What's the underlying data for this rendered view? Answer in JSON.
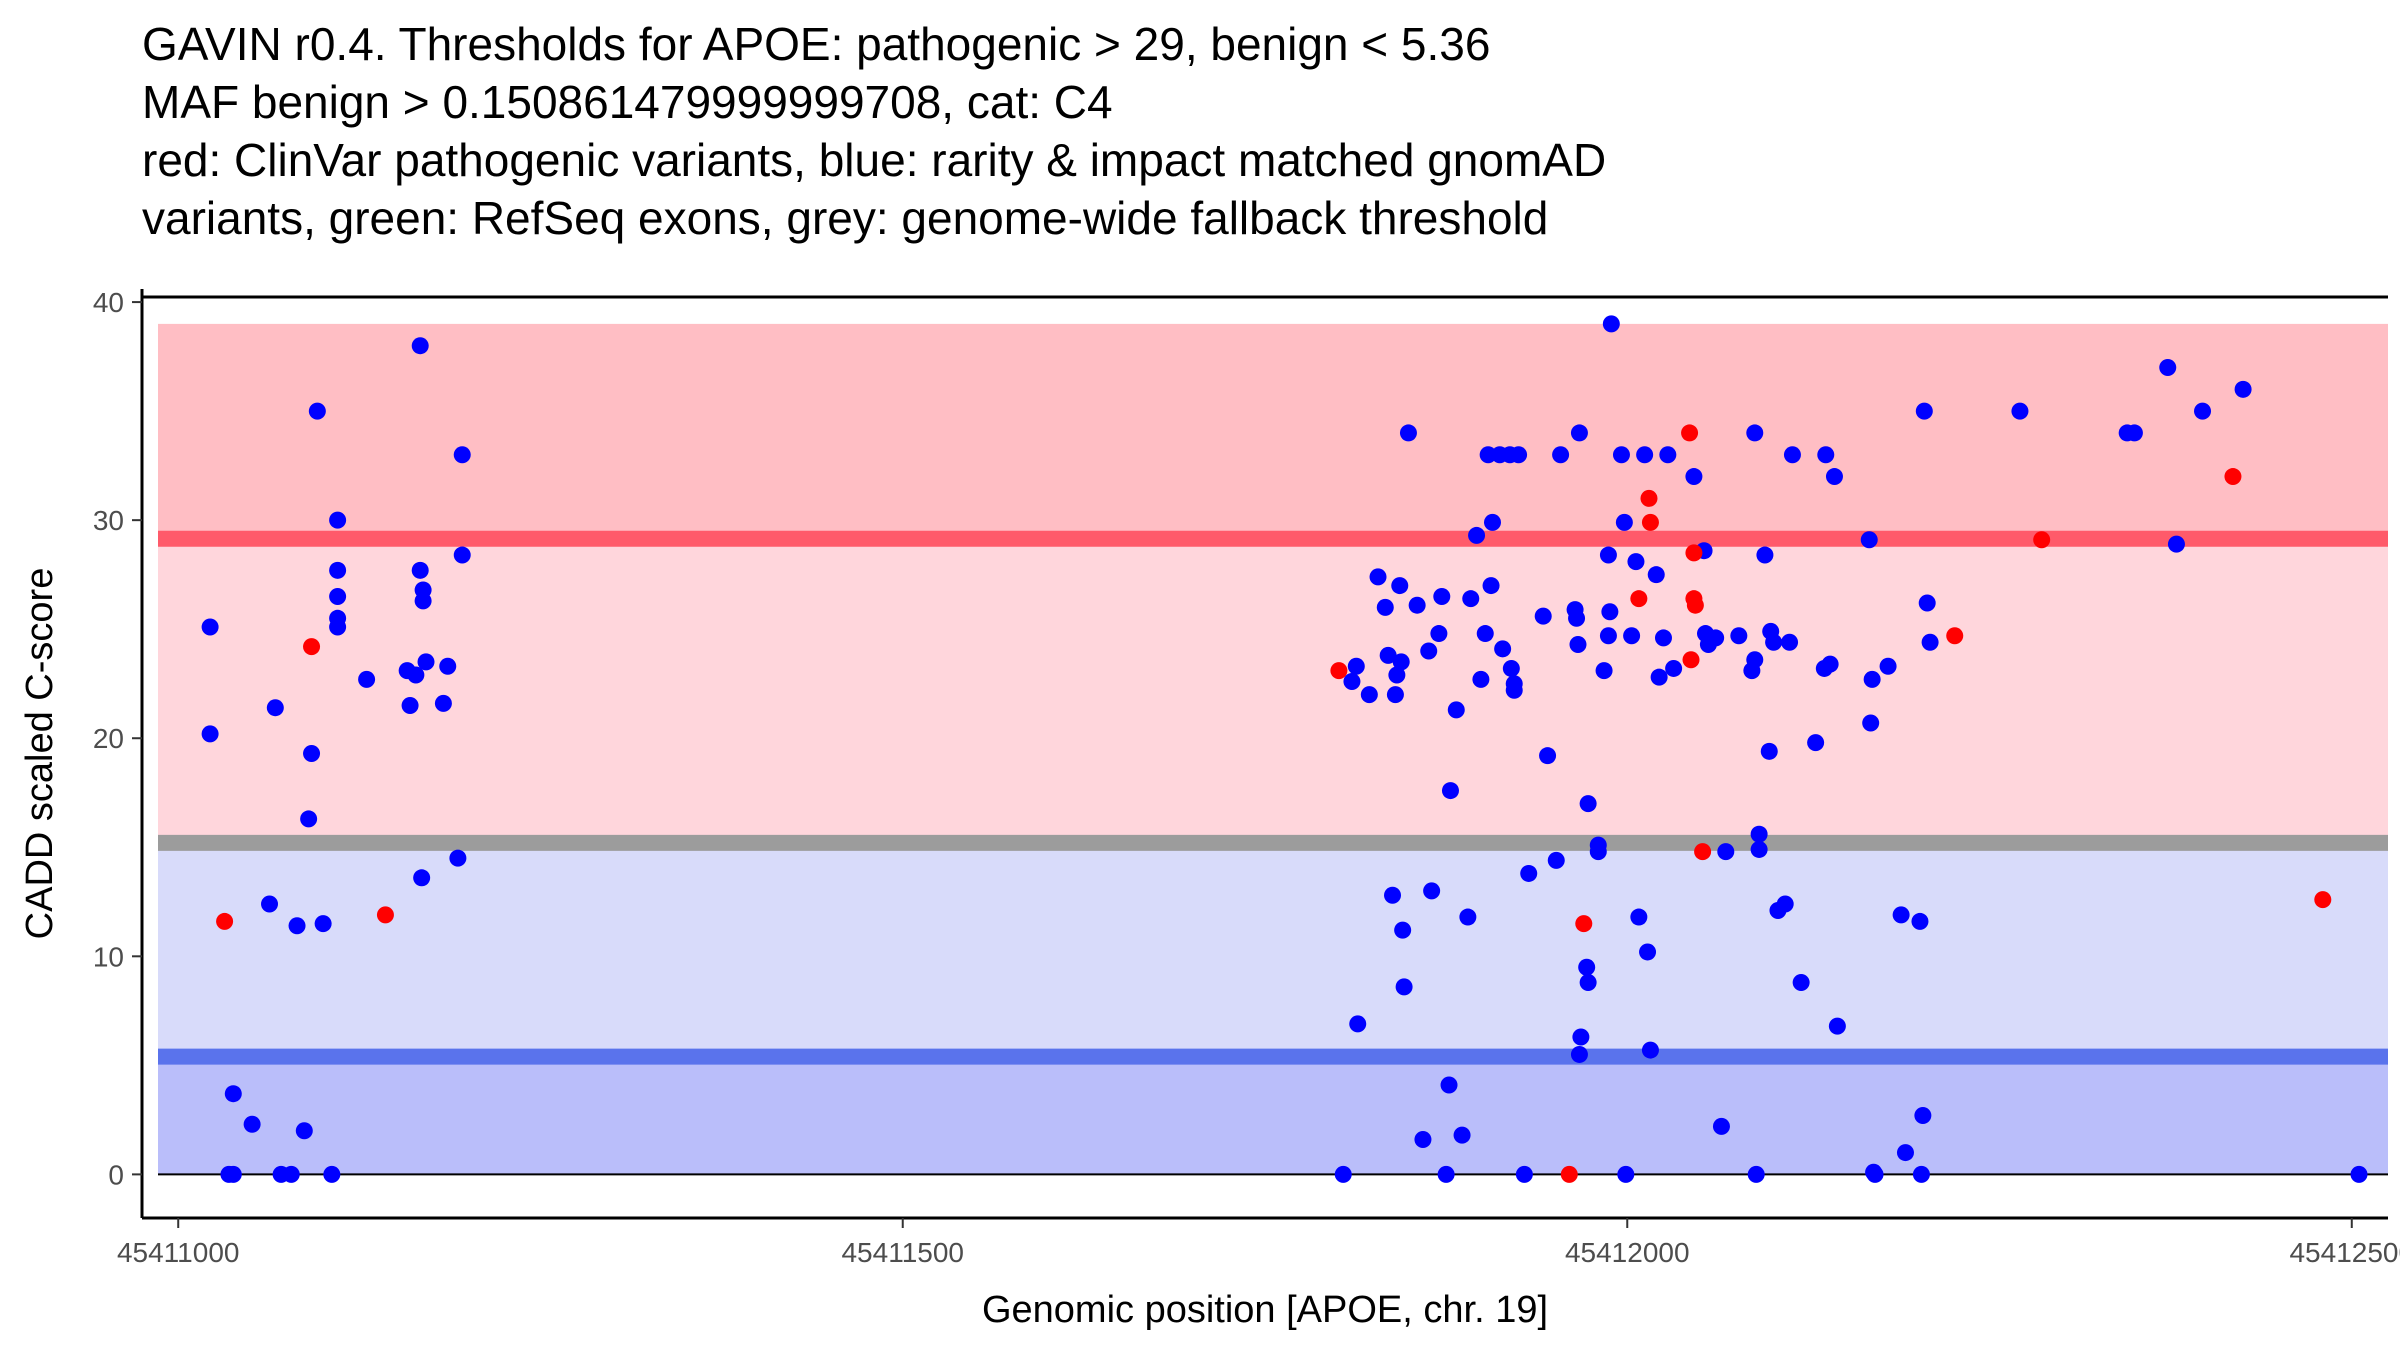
{
  "chart_data": {
    "type": "scatter",
    "title_lines": [
      "GAVIN r0.4. Thresholds for APOE: pathogenic > 29, benign < 5.36",
      "MAF benign > 0.150861479999999708, cat: C4",
      "red: ClinVar pathogenic variants, blue: rarity & impact matched gnomAD",
      "variants, green: RefSeq exons, grey: genome-wide fallback threshold"
    ],
    "xlabel": "Genomic position [APOE, chr. 19]",
    "ylabel": "CADD scaled C-score",
    "xlim": [
      45410975,
      45412525
    ],
    "ylim": [
      -2,
      40.6
    ],
    "x_ticks": [
      45411000,
      45411500,
      45412000,
      45412500
    ],
    "x_tick_labels": [
      "45411000",
      "45411500",
      "45412000",
      "45412500"
    ],
    "y_ticks": [
      0,
      10,
      20,
      30,
      40
    ],
    "y_tick_labels": [
      "0",
      "10",
      "20",
      "30",
      "40"
    ],
    "bands": [
      {
        "name": "pathogenic-high-band",
        "y0": 29,
        "y1": 39,
        "color": "#ffbec4"
      },
      {
        "name": "pathogenic-mid-band",
        "y0": 15.2,
        "y1": 29,
        "color": "#ffd6dc"
      },
      {
        "name": "benign-mid-band",
        "y0": 5.36,
        "y1": 15.2,
        "color": "#d8dbfa"
      },
      {
        "name": "benign-low-band",
        "y0": 0,
        "y1": 5.36,
        "color": "#babefa"
      }
    ],
    "threshold_lines": [
      {
        "name": "pathogenic-threshold-line",
        "y": 29.15,
        "color": "#ff5a6a"
      },
      {
        "name": "fallback-threshold-line",
        "y": 15.2,
        "color": "#9c9c9c"
      },
      {
        "name": "benign-threshold-line",
        "y": 5.4,
        "color": "#5a73ec"
      }
    ],
    "series": [
      {
        "name": "gnomAD",
        "color": "#0000ff",
        "points": [
          [
            45411022,
            25.1
          ],
          [
            45411022,
            20.2
          ],
          [
            45411038,
            3.7
          ],
          [
            45411035,
            0
          ],
          [
            45411038,
            0
          ],
          [
            45411051,
            2.3
          ],
          [
            45411063,
            12.4
          ],
          [
            45411067,
            21.4
          ],
          [
            45411071,
            0
          ],
          [
            45411078,
            0
          ],
          [
            45411082,
            11.4
          ],
          [
            45411087,
            2.0
          ],
          [
            45411090,
            16.3
          ],
          [
            45411092,
            19.3
          ],
          [
            45411096,
            35.0
          ],
          [
            45411100,
            11.5
          ],
          [
            45411106,
            0
          ],
          [
            45411110,
            30.0
          ],
          [
            45411110,
            27.7
          ],
          [
            45411110,
            26.5
          ],
          [
            45411110,
            25.5
          ],
          [
            45411110,
            25.1
          ],
          [
            45411130,
            22.7
          ],
          [
            45411158,
            23.1
          ],
          [
            45411160,
            21.5
          ],
          [
            45411164,
            22.9
          ],
          [
            45411167,
            38.0
          ],
          [
            45411167,
            27.7
          ],
          [
            45411169,
            26.8
          ],
          [
            45411169,
            26.3
          ],
          [
            45411168,
            13.6
          ],
          [
            45411171,
            23.5
          ],
          [
            45411183,
            21.6
          ],
          [
            45411186,
            23.3
          ],
          [
            45411193,
            14.5
          ],
          [
            45411196,
            33.0
          ],
          [
            45411196,
            28.4
          ],
          [
            45411804,
            0
          ],
          [
            45411810,
            22.6
          ],
          [
            45411813,
            23.3
          ],
          [
            45411814,
            6.9
          ],
          [
            45411822,
            22.0
          ],
          [
            45411828,
            27.4
          ],
          [
            45411833,
            26.0
          ],
          [
            45411835,
            23.8
          ],
          [
            45411838,
            12.8
          ],
          [
            45411840,
            22.0
          ],
          [
            45411841,
            22.9
          ],
          [
            45411843,
            27.0
          ],
          [
            45411844,
            23.5
          ],
          [
            45411845,
            11.2
          ],
          [
            45411846,
            8.6
          ],
          [
            45411849,
            34.0
          ],
          [
            45411855,
            26.1
          ],
          [
            45411859,
            1.6
          ],
          [
            45411863,
            24.0
          ],
          [
            45411865,
            13.0
          ],
          [
            45411870,
            24.8
          ],
          [
            45411872,
            26.5
          ],
          [
            45411875,
            0
          ],
          [
            45411877,
            4.1
          ],
          [
            45411878,
            17.6
          ],
          [
            45411882,
            21.3
          ],
          [
            45411886,
            1.8
          ],
          [
            45411890,
            11.8
          ],
          [
            45411892,
            26.4
          ],
          [
            45411896,
            29.3
          ],
          [
            45411899,
            22.7
          ],
          [
            45411902,
            24.8
          ],
          [
            45411904,
            33.0
          ],
          [
            45411906,
            27.0
          ],
          [
            45411907,
            29.9
          ],
          [
            45411912,
            33.0
          ],
          [
            45411914,
            24.1
          ],
          [
            45411919,
            33.0
          ],
          [
            45411920,
            23.2
          ],
          [
            45411922,
            22.5
          ],
          [
            45411922,
            22.2
          ],
          [
            45411925,
            33.0
          ],
          [
            45411929,
            0
          ],
          [
            45411932,
            13.8
          ],
          [
            45411942,
            25.6
          ],
          [
            45411945,
            19.2
          ],
          [
            45411951,
            14.4
          ],
          [
            45411954,
            33.0
          ],
          [
            45411964,
            25.9
          ],
          [
            45411967,
            34.0
          ],
          [
            45411965,
            25.5
          ],
          [
            45411966,
            24.3
          ],
          [
            45411967,
            5.5
          ],
          [
            45411968,
            6.3
          ],
          [
            45411972,
            9.5
          ],
          [
            45411973,
            17.0
          ],
          [
            45411973,
            8.8
          ],
          [
            45411980,
            15.1
          ],
          [
            45411980,
            14.8
          ],
          [
            45411984,
            23.1
          ],
          [
            45411987,
            28.4
          ],
          [
            45411988,
            25.8
          ],
          [
            45411987,
            24.7
          ],
          [
            45411989,
            39.0
          ],
          [
            45411996,
            33.0
          ],
          [
            45411998,
            29.9
          ],
          [
            45411999,
            0
          ],
          [
            45412003,
            24.7
          ],
          [
            45412006,
            28.1
          ],
          [
            45412008,
            11.8
          ],
          [
            45412012,
            33.0
          ],
          [
            45412014,
            10.2
          ],
          [
            45412016,
            5.7
          ],
          [
            45412020,
            27.5
          ],
          [
            45412022,
            22.8
          ],
          [
            45412025,
            24.6
          ],
          [
            45412028,
            33.0
          ],
          [
            45412032,
            23.2
          ],
          [
            45412046,
            32.0
          ],
          [
            45412053,
            28.6
          ],
          [
            45412054,
            24.8
          ],
          [
            45412056,
            24.3
          ],
          [
            45412061,
            24.6
          ],
          [
            45412065,
            2.2
          ],
          [
            45412068,
            14.8
          ],
          [
            45412077,
            24.7
          ],
          [
            45412086,
            23.1
          ],
          [
            45412088,
            34.0
          ],
          [
            45412088,
            23.6
          ],
          [
            45412089,
            0
          ],
          [
            45412091,
            15.6
          ],
          [
            45412091,
            14.9
          ],
          [
            45412095,
            28.4
          ],
          [
            45412098,
            19.4
          ],
          [
            45412099,
            24.9
          ],
          [
            45412101,
            24.4
          ],
          [
            45412104,
            12.1
          ],
          [
            45412109,
            12.4
          ],
          [
            45412112,
            24.4
          ],
          [
            45412114,
            33.0
          ],
          [
            45412120,
            8.8
          ],
          [
            45412130,
            19.8
          ],
          [
            45412136,
            23.2
          ],
          [
            45412137,
            33.0
          ],
          [
            45412140,
            23.4
          ],
          [
            45412143,
            32.0
          ],
          [
            45412145,
            6.8
          ],
          [
            45412167,
            29.1
          ],
          [
            45412168,
            20.7
          ],
          [
            45412169,
            22.7
          ],
          [
            45412170,
            0.1
          ],
          [
            45412171,
            0
          ],
          [
            45412180,
            23.3
          ],
          [
            45412189,
            11.9
          ],
          [
            45412192,
            1.0
          ],
          [
            45412202,
            11.6
          ],
          [
            45412203,
            0
          ],
          [
            45412204,
            2.7
          ],
          [
            45412205,
            35.0
          ],
          [
            45412207,
            26.2
          ],
          [
            45412209,
            24.4
          ],
          [
            45412271,
            35.0
          ],
          [
            45412345,
            34.0
          ],
          [
            45412350,
            34.0
          ],
          [
            45412373,
            37.0
          ],
          [
            45412379,
            28.9
          ],
          [
            45412397,
            35.0
          ],
          [
            45412425,
            36.0
          ],
          [
            45412505,
            0
          ]
        ]
      },
      {
        "name": "ClinVar",
        "color": "#ff0000",
        "points": [
          [
            45411032,
            11.6
          ],
          [
            45411092,
            24.2
          ],
          [
            45411143,
            11.9
          ],
          [
            45411801,
            23.1
          ],
          [
            45411960,
            0
          ],
          [
            45411970,
            11.5
          ],
          [
            45412008,
            26.4
          ],
          [
            45412015,
            31.0
          ],
          [
            45412016,
            29.9
          ],
          [
            45412043,
            34.0
          ],
          [
            45412044,
            23.6
          ],
          [
            45412046,
            26.4
          ],
          [
            45412046,
            28.5
          ],
          [
            45412047,
            26.1
          ],
          [
            45412052,
            14.8
          ],
          [
            45412226,
            24.7
          ],
          [
            45412286,
            29.1
          ],
          [
            45412418,
            32.0
          ],
          [
            45412480,
            12.6
          ]
        ]
      }
    ]
  }
}
